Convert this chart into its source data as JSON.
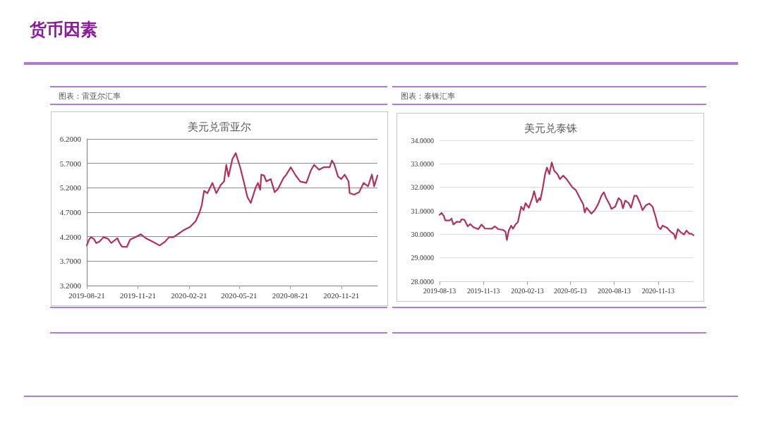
{
  "chart_data": [
    {
      "type": "line",
      "title": "美元兑雷亚尔",
      "subtitle": "图表：雷亚尔汇率",
      "annotations": [
        "货币因素"
      ],
      "x": [
        "2019-08-21",
        "2019-08-25",
        "2019-08-29",
        "2019-09-03",
        "2019-09-07",
        "2019-09-13",
        "2019-09-20",
        "2019-09-28",
        "2019-10-04",
        "2019-10-15",
        "2019-10-19",
        "2019-10-23",
        "2019-11-01",
        "2019-11-07",
        "2019-11-18",
        "2019-11-26",
        "2019-12-05",
        "2019-12-17",
        "2019-12-30",
        "2020-01-09",
        "2020-01-16",
        "2020-01-24",
        "2020-02-02",
        "2020-02-12",
        "2020-02-23",
        "2020-03-04",
        "2020-03-11",
        "2020-03-15",
        "2020-03-19",
        "2020-03-25",
        "2020-04-03",
        "2020-04-10",
        "2020-04-18",
        "2020-04-24",
        "2020-04-28",
        "2020-05-02",
        "2020-05-09",
        "2020-05-15",
        "2020-05-23",
        "2020-05-30",
        "2020-06-05",
        "2020-06-11",
        "2020-06-20",
        "2020-06-24",
        "2020-06-28",
        "2020-06-30",
        "2020-07-05",
        "2020-07-09",
        "2020-07-17",
        "2020-07-24",
        "2020-07-30",
        "2020-08-09",
        "2020-08-14",
        "2020-08-22",
        "2020-08-31",
        "2020-09-08",
        "2020-09-19",
        "2020-09-27",
        "2020-10-03",
        "2020-10-12",
        "2020-10-20",
        "2020-10-31",
        "2020-11-04",
        "2020-11-08",
        "2020-11-15",
        "2020-11-21",
        "2020-11-27",
        "2020-12-04",
        "2020-12-06",
        "2020-12-14",
        "2020-12-23",
        "2020-12-31",
        "2021-01-08",
        "2021-01-15",
        "2021-01-19",
        "2021-01-25"
      ],
      "series": [
        {
          "color": "#b3305d",
          "values": [
            4.02,
            4.14,
            4.19,
            4.15,
            4.07,
            4.1,
            4.19,
            4.16,
            4.07,
            4.17,
            4.07,
            4.0,
            3.99,
            4.14,
            4.2,
            4.25,
            4.17,
            4.1,
            4.02,
            4.1,
            4.19,
            4.19,
            4.26,
            4.34,
            4.4,
            4.52,
            4.7,
            4.85,
            5.14,
            5.09,
            5.3,
            5.09,
            5.26,
            5.33,
            5.67,
            5.43,
            5.79,
            5.91,
            5.62,
            5.3,
            5.01,
            4.89,
            5.21,
            5.3,
            5.16,
            5.47,
            5.45,
            5.33,
            5.38,
            5.11,
            5.18,
            5.4,
            5.47,
            5.62,
            5.45,
            5.33,
            5.3,
            5.55,
            5.67,
            5.57,
            5.62,
            5.62,
            5.76,
            5.69,
            5.43,
            5.38,
            5.47,
            5.33,
            5.09,
            5.06,
            5.11,
            5.3,
            5.23,
            5.47,
            5.23,
            5.45
          ]
        }
      ],
      "xlim": [
        "2019-08-21",
        "2021-01-25"
      ],
      "xticks": [
        {
          "value": "2019-08-21",
          "label": "2019-08-21"
        },
        {
          "value": "2019-11-21",
          "label": "2019-11-21"
        },
        {
          "value": "2020-02-21",
          "label": "2020-02-21"
        },
        {
          "value": "2020-05-21",
          "label": "2020-05-21"
        },
        {
          "value": "2020-08-21",
          "label": "2020-08-21"
        },
        {
          "value": "2020-11-21",
          "label": "2020-11-21"
        }
      ],
      "ylim": [
        3.2,
        6.2
      ],
      "yticks": [
        {
          "value": 3.2,
          "label": "3.2000"
        },
        {
          "value": 3.7,
          "label": "3.7000"
        },
        {
          "value": 4.2,
          "label": "4.2000"
        },
        {
          "value": 4.7,
          "label": "4.7000"
        },
        {
          "value": 5.2,
          "label": "5.2000"
        },
        {
          "value": 5.7,
          "label": "5.7000"
        },
        {
          "value": 6.2,
          "label": "6.2000"
        }
      ],
      "grid": "y",
      "marker": "none",
      "line_style": "solid"
    },
    {
      "type": "line",
      "title": "美元兑泰铢",
      "subtitle": "图表：泰铢汇率",
      "x": [
        "2019-08-13",
        "2019-08-17",
        "2019-08-22",
        "2019-08-25",
        "2019-09-03",
        "2019-09-07",
        "2019-09-11",
        "2019-09-18",
        "2019-09-25",
        "2019-09-28",
        "2019-10-04",
        "2019-10-11",
        "2019-10-16",
        "2019-10-23",
        "2019-11-02",
        "2019-11-09",
        "2019-11-16",
        "2019-11-30",
        "2019-12-07",
        "2019-12-14",
        "2019-12-24",
        "2019-12-29",
        "2020-01-01",
        "2020-01-05",
        "2020-01-10",
        "2020-01-14",
        "2020-01-19",
        "2020-01-24",
        "2020-01-31",
        "2020-02-05",
        "2020-02-09",
        "2020-02-16",
        "2020-02-24",
        "2020-02-27",
        "2020-03-04",
        "2020-03-09",
        "2020-03-11",
        "2020-03-16",
        "2020-03-21",
        "2020-03-25",
        "2020-03-30",
        "2020-04-04",
        "2020-04-09",
        "2020-04-16",
        "2020-04-21",
        "2020-04-28",
        "2020-05-05",
        "2020-05-12",
        "2020-05-17",
        "2020-05-24",
        "2020-06-02",
        "2020-06-09",
        "2020-06-12",
        "2020-06-16",
        "2020-06-26",
        "2020-07-03",
        "2020-07-10",
        "2020-07-17",
        "2020-07-22",
        "2020-07-27",
        "2020-08-03",
        "2020-08-07",
        "2020-08-15",
        "2020-08-22",
        "2020-08-27",
        "2020-08-31",
        "2020-09-05",
        "2020-09-12",
        "2020-09-17",
        "2020-09-24",
        "2020-09-29",
        "2020-10-06",
        "2020-10-11",
        "2020-10-18",
        "2020-10-25",
        "2020-11-01",
        "2020-11-07",
        "2020-11-13",
        "2020-11-18",
        "2020-11-22",
        "2020-12-02",
        "2020-12-09",
        "2020-12-16",
        "2020-12-19",
        "2020-12-24",
        "2020-12-30",
        "2021-01-06",
        "2021-01-11",
        "2021-01-17",
        "2021-01-21",
        "2021-01-26"
      ],
      "series": [
        {
          "color": "#b3305d",
          "values": [
            30.83,
            30.91,
            30.78,
            30.59,
            30.59,
            30.67,
            30.42,
            30.54,
            30.52,
            30.64,
            30.62,
            30.34,
            30.44,
            30.3,
            30.22,
            30.42,
            30.25,
            30.24,
            30.34,
            30.22,
            30.19,
            30.11,
            29.76,
            30.16,
            30.37,
            30.24,
            30.42,
            30.52,
            31.18,
            31.03,
            31.33,
            31.13,
            31.59,
            31.84,
            31.36,
            31.54,
            31.46,
            31.95,
            32.56,
            32.84,
            32.56,
            33.06,
            32.71,
            32.56,
            32.35,
            32.5,
            32.35,
            32.15,
            32.0,
            31.89,
            31.54,
            31.28,
            30.93,
            31.13,
            30.88,
            31.03,
            31.28,
            31.64,
            31.79,
            31.54,
            31.28,
            31.08,
            31.18,
            31.54,
            31.44,
            31.11,
            31.44,
            31.33,
            31.13,
            31.64,
            31.64,
            31.33,
            31.03,
            31.23,
            31.31,
            31.18,
            30.78,
            30.32,
            30.22,
            30.37,
            30.27,
            30.11,
            30.01,
            29.81,
            30.22,
            30.09,
            29.99,
            30.16,
            30.03,
            30.03,
            29.96
          ]
        }
      ],
      "xlim": [
        "2019-08-13",
        "2021-01-26"
      ],
      "xticks": [
        {
          "value": "2019-08-13",
          "label": "2019-08-13"
        },
        {
          "value": "2019-11-13",
          "label": "2019-11-13"
        },
        {
          "value": "2020-02-13",
          "label": "2020-02-13"
        },
        {
          "value": "2020-05-13",
          "label": "2020-05-13"
        },
        {
          "value": "2020-08-13",
          "label": "2020-08-13"
        },
        {
          "value": "2020-11-13",
          "label": "2020-11-13"
        }
      ],
      "ylim": [
        28,
        34
      ],
      "yticks": [
        {
          "value": 28,
          "label": "28.0000"
        },
        {
          "value": 29,
          "label": "29.0000"
        },
        {
          "value": 30,
          "label": "30.0000"
        },
        {
          "value": 31,
          "label": "31.0000"
        },
        {
          "value": 32,
          "label": "32.0000"
        },
        {
          "value": 33,
          "label": "33.0000"
        },
        {
          "value": 34,
          "label": "34.0000"
        }
      ],
      "grid": "y",
      "marker": "none",
      "line_style": "solid"
    }
  ]
}
